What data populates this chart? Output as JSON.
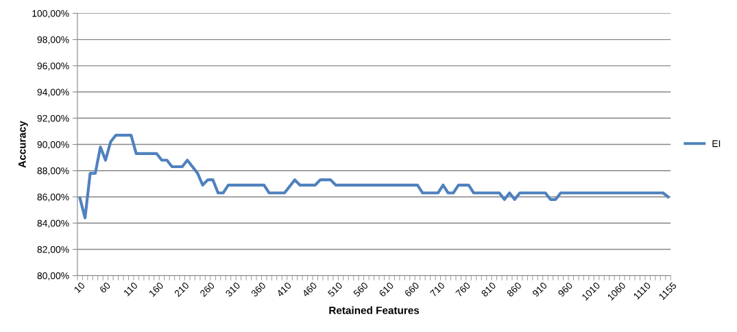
{
  "chart_data": {
    "type": "line",
    "xlabel": "Retained Features",
    "ylabel": "Accuracy",
    "categories": [
      "10",
      null,
      null,
      null,
      null,
      "60",
      null,
      null,
      null,
      null,
      "110",
      null,
      null,
      null,
      null,
      "160",
      null,
      null,
      null,
      null,
      "210",
      null,
      null,
      null,
      null,
      "260",
      null,
      null,
      null,
      null,
      "310",
      null,
      null,
      null,
      null,
      "360",
      null,
      null,
      null,
      null,
      "410",
      null,
      null,
      null,
      null,
      "460",
      null,
      null,
      null,
      null,
      "510",
      null,
      null,
      null,
      null,
      "560",
      null,
      null,
      null,
      null,
      "610",
      null,
      null,
      null,
      null,
      "660",
      null,
      null,
      null,
      null,
      "710",
      null,
      null,
      null,
      null,
      "760",
      null,
      null,
      null,
      null,
      "810",
      null,
      null,
      null,
      null,
      "860",
      null,
      null,
      null,
      null,
      "910",
      null,
      null,
      null,
      null,
      "960",
      null,
      null,
      null,
      null,
      "1010",
      null,
      null,
      null,
      null,
      "1060",
      null,
      null,
      null,
      null,
      "1110",
      null,
      null,
      null,
      null,
      "1155"
    ],
    "series": [
      {
        "name": "EI",
        "color": "#4f81bd",
        "values": [
          85.9,
          84.4,
          87.8,
          87.8,
          89.8,
          88.8,
          90.2,
          90.7,
          90.7,
          90.7,
          90.7,
          89.3,
          89.3,
          89.3,
          89.3,
          89.3,
          88.8,
          88.8,
          88.3,
          88.3,
          88.3,
          88.8,
          88.3,
          87.8,
          86.9,
          87.3,
          87.3,
          86.3,
          86.3,
          86.9,
          86.9,
          86.9,
          86.9,
          86.9,
          86.9,
          86.9,
          86.9,
          86.3,
          86.3,
          86.3,
          86.3,
          86.8,
          87.3,
          86.9,
          86.9,
          86.9,
          86.9,
          87.3,
          87.3,
          87.3,
          86.9,
          86.9,
          86.9,
          86.9,
          86.9,
          86.9,
          86.9,
          86.9,
          86.9,
          86.9,
          86.9,
          86.9,
          86.9,
          86.9,
          86.9,
          86.9,
          86.9,
          86.3,
          86.3,
          86.3,
          86.3,
          86.9,
          86.3,
          86.3,
          86.9,
          86.9,
          86.9,
          86.3,
          86.3,
          86.3,
          86.3,
          86.3,
          86.3,
          85.8,
          86.3,
          85.8,
          86.3,
          86.3,
          86.3,
          86.3,
          86.3,
          86.3,
          85.8,
          85.8,
          86.3,
          86.3,
          86.3,
          86.3,
          86.3,
          86.3,
          86.3,
          86.3,
          86.3,
          86.3,
          86.3,
          86.3,
          86.3,
          86.3,
          86.3,
          86.3,
          86.3,
          86.3,
          86.3,
          86.3,
          86.3,
          86.0
        ]
      }
    ],
    "ylim": [
      80,
      100
    ],
    "yticks": [
      {
        "value": 80,
        "label": "80,00%"
      },
      {
        "value": 82,
        "label": "82,00%"
      },
      {
        "value": 84,
        "label": "84,00%"
      },
      {
        "value": 86,
        "label": "86,00%"
      },
      {
        "value": 88,
        "label": "88,00%"
      },
      {
        "value": 90,
        "label": "90,00%"
      },
      {
        "value": 92,
        "label": "92,00%"
      },
      {
        "value": 94,
        "label": "94,00%"
      },
      {
        "value": 96,
        "label": "96,00%"
      },
      {
        "value": 98,
        "label": "98,00%"
      },
      {
        "value": 100,
        "label": "100,00%"
      }
    ],
    "grid": "y",
    "legend": "right",
    "marker": "none",
    "line_style": "solid"
  }
}
